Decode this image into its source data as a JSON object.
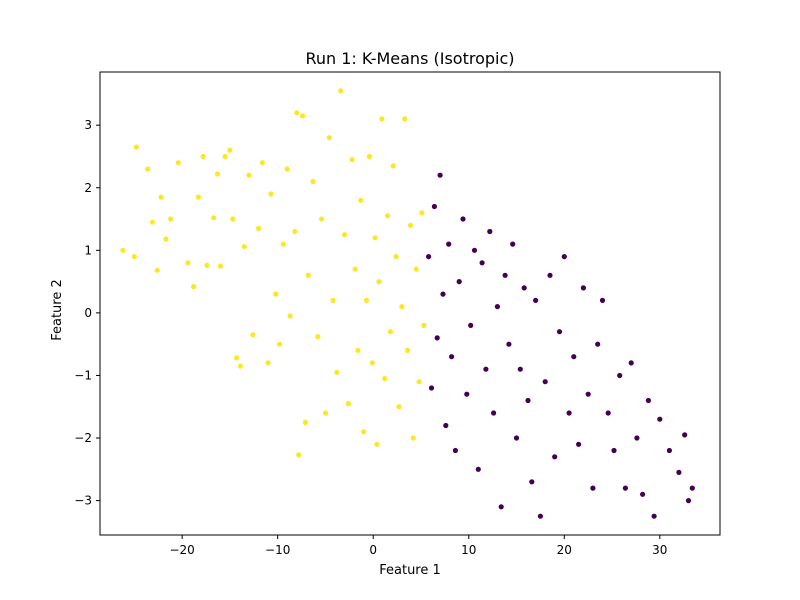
{
  "chart_data": {
    "type": "scatter",
    "title": "Run 1: K-Means (Isotropic)",
    "xlabel": "Feature 1",
    "ylabel": "Feature 2",
    "xlim": [
      -28.6,
      36.3
    ],
    "ylim": [
      -3.55,
      3.85
    ],
    "xticks": [
      -20,
      -10,
      0,
      10,
      20,
      30
    ],
    "yticks": [
      -3,
      -2,
      -1,
      0,
      1,
      2,
      3
    ],
    "grid": false,
    "legend": "none",
    "cluster_boundary_x": 5.5,
    "series": [
      {
        "cluster": 1,
        "color": "#fde725",
        "points": [
          [
            -26.2,
            1.0
          ],
          [
            -25.0,
            0.9
          ],
          [
            -24.8,
            2.65
          ],
          [
            -23.6,
            2.3
          ],
          [
            -23.1,
            1.45
          ],
          [
            -22.6,
            0.68
          ],
          [
            -22.2,
            1.85
          ],
          [
            -21.7,
            1.18
          ],
          [
            -21.2,
            1.5
          ],
          [
            -20.4,
            2.4
          ],
          [
            -19.4,
            0.8
          ],
          [
            -18.8,
            0.42
          ],
          [
            -18.3,
            1.85
          ],
          [
            -17.8,
            2.5
          ],
          [
            -17.4,
            0.76
          ],
          [
            -16.7,
            1.52
          ],
          [
            -16.3,
            2.22
          ],
          [
            -16.0,
            0.75
          ],
          [
            -15.5,
            2.5
          ],
          [
            -15.0,
            2.6
          ],
          [
            -14.7,
            1.5
          ],
          [
            -14.3,
            -0.72
          ],
          [
            -13.9,
            -0.85
          ],
          [
            -13.5,
            1.06
          ],
          [
            -13.0,
            2.2
          ],
          [
            -12.6,
            -0.35
          ],
          [
            -12.0,
            1.35
          ],
          [
            -11.6,
            2.4
          ],
          [
            -11.0,
            -0.8
          ],
          [
            -10.7,
            1.9
          ],
          [
            -10.2,
            0.3
          ],
          [
            -9.8,
            -0.5
          ],
          [
            -9.4,
            1.1
          ],
          [
            -9.0,
            2.3
          ],
          [
            -8.7,
            -0.05
          ],
          [
            -8.2,
            1.3
          ],
          [
            -8.0,
            3.2
          ],
          [
            -7.8,
            -2.27
          ],
          [
            -7.4,
            3.15
          ],
          [
            -7.1,
            -1.75
          ],
          [
            -6.8,
            0.6
          ],
          [
            -6.3,
            2.1
          ],
          [
            -5.8,
            -0.38
          ],
          [
            -5.4,
            1.5
          ],
          [
            -5.0,
            -1.6
          ],
          [
            -4.6,
            2.8
          ],
          [
            -4.2,
            0.2
          ],
          [
            -3.8,
            -0.95
          ],
          [
            -3.4,
            3.55
          ],
          [
            -3.0,
            1.25
          ],
          [
            -2.6,
            -1.45
          ],
          [
            -2.2,
            2.45
          ],
          [
            -1.9,
            0.7
          ],
          [
            -1.6,
            -0.6
          ],
          [
            -1.3,
            1.8
          ],
          [
            -1.0,
            -1.9
          ],
          [
            -0.7,
            0.2
          ],
          [
            -0.4,
            2.5
          ],
          [
            -0.1,
            -0.8
          ],
          [
            0.2,
            1.2
          ],
          [
            0.4,
            -2.1
          ],
          [
            0.6,
            0.5
          ],
          [
            0.9,
            3.1
          ],
          [
            1.2,
            -1.05
          ],
          [
            1.5,
            1.55
          ],
          [
            1.8,
            -0.3
          ],
          [
            2.1,
            2.35
          ],
          [
            2.4,
            0.9
          ],
          [
            2.7,
            -1.5
          ],
          [
            3.0,
            0.1
          ],
          [
            3.3,
            3.1
          ],
          [
            3.6,
            -0.6
          ],
          [
            3.9,
            1.4
          ],
          [
            4.2,
            -2.0
          ],
          [
            4.5,
            0.7
          ],
          [
            4.8,
            -1.1
          ],
          [
            5.1,
            1.6
          ],
          [
            5.3,
            -0.2
          ]
        ]
      },
      {
        "cluster": 0,
        "color": "#440154",
        "points": [
          [
            5.8,
            0.9
          ],
          [
            6.1,
            -1.2
          ],
          [
            6.4,
            1.7
          ],
          [
            6.7,
            -0.4
          ],
          [
            7.0,
            2.2
          ],
          [
            7.3,
            0.3
          ],
          [
            7.6,
            -1.8
          ],
          [
            7.9,
            1.1
          ],
          [
            8.2,
            -0.7
          ],
          [
            8.6,
            -2.2
          ],
          [
            9.0,
            0.5
          ],
          [
            9.4,
            1.5
          ],
          [
            9.8,
            -1.3
          ],
          [
            10.2,
            -0.2
          ],
          [
            10.6,
            1.0
          ],
          [
            11.0,
            -2.5
          ],
          [
            11.4,
            0.8
          ],
          [
            11.8,
            -0.9
          ],
          [
            12.2,
            1.3
          ],
          [
            12.6,
            -1.6
          ],
          [
            13.0,
            0.1
          ],
          [
            13.4,
            -3.1
          ],
          [
            13.8,
            0.6
          ],
          [
            14.2,
            -0.5
          ],
          [
            14.6,
            1.1
          ],
          [
            15.0,
            -2.0
          ],
          [
            15.4,
            -0.9
          ],
          [
            15.8,
            0.4
          ],
          [
            16.2,
            -1.4
          ],
          [
            16.6,
            -2.7
          ],
          [
            17.0,
            0.2
          ],
          [
            17.5,
            -3.25
          ],
          [
            18.0,
            -1.1
          ],
          [
            18.5,
            0.6
          ],
          [
            19.0,
            -2.3
          ],
          [
            19.5,
            -0.3
          ],
          [
            20.0,
            0.9
          ],
          [
            20.5,
            -1.6
          ],
          [
            21.0,
            -0.7
          ],
          [
            21.5,
            -2.1
          ],
          [
            22.0,
            0.4
          ],
          [
            22.5,
            -1.3
          ],
          [
            23.0,
            -2.8
          ],
          [
            23.5,
            -0.5
          ],
          [
            24.0,
            0.2
          ],
          [
            24.6,
            -1.6
          ],
          [
            25.2,
            -2.2
          ],
          [
            25.8,
            -1.0
          ],
          [
            26.4,
            -2.8
          ],
          [
            27.0,
            -0.8
          ],
          [
            27.6,
            -2.0
          ],
          [
            28.2,
            -2.9
          ],
          [
            28.8,
            -1.4
          ],
          [
            29.4,
            -3.25
          ],
          [
            30.0,
            -1.7
          ],
          [
            31.0,
            -2.2
          ],
          [
            32.0,
            -2.55
          ],
          [
            32.6,
            -1.95
          ],
          [
            33.0,
            -3.0
          ],
          [
            33.4,
            -2.8
          ]
        ]
      }
    ]
  }
}
